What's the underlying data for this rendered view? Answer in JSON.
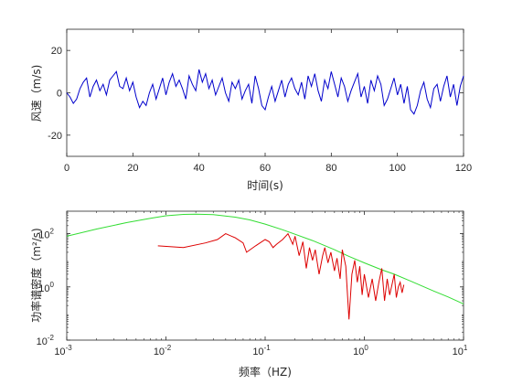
{
  "colors": {
    "wind_line": "#0000cc",
    "psd_line": "#dd0000",
    "model_line": "#33dd33",
    "axis": "#262626",
    "frame": "#262626"
  },
  "chart_data": [
    {
      "type": "line",
      "xlabel": "时间(s)",
      "ylabel": "风速（m/s)",
      "xlim": [
        0,
        120
      ],
      "ylim": [
        -30,
        30
      ],
      "xticks": [
        "0",
        "20",
        "40",
        "60",
        "80",
        "100",
        "120"
      ],
      "yticks": [
        "20",
        "0",
        "-20"
      ],
      "grid": false,
      "series": [
        {
          "x": [
            0,
            1,
            2,
            3,
            4,
            5,
            6,
            7,
            8,
            9,
            10,
            11,
            12,
            13,
            14,
            15,
            16,
            17,
            18,
            19,
            20,
            21,
            22,
            23,
            24,
            25,
            26,
            27,
            28,
            29,
            30,
            31,
            32,
            33,
            34,
            35,
            36,
            37,
            38,
            39,
            40,
            41,
            42,
            43,
            44,
            45,
            46,
            47,
            48,
            49,
            50,
            51,
            52,
            53,
            54,
            55,
            56,
            57,
            58,
            59,
            60,
            61,
            62,
            63,
            64,
            65,
            66,
            67,
            68,
            69,
            70,
            71,
            72,
            73,
            74,
            75,
            76,
            77,
            78,
            79,
            80,
            81,
            82,
            83,
            84,
            85,
            86,
            87,
            88,
            89,
            90,
            91,
            92,
            93,
            94,
            95,
            96,
            97,
            98,
            99,
            100,
            101,
            102,
            103,
            104,
            105,
            106,
            107,
            108,
            109,
            110,
            111,
            112,
            113,
            114,
            115,
            116,
            117,
            118,
            119,
            120
          ],
          "values": [
            0,
            -2,
            -5,
            -3,
            2,
            5,
            7,
            -2,
            3,
            6,
            1,
            4,
            -1,
            6,
            8,
            10,
            3,
            2,
            7,
            1,
            5,
            -2,
            -7,
            -4,
            -6,
            0,
            4,
            -3,
            2,
            7,
            -1,
            5,
            9,
            3,
            6,
            2,
            -3,
            8,
            4,
            1,
            11,
            5,
            9,
            2,
            6,
            -1,
            3,
            7,
            0,
            -4,
            5,
            2,
            6,
            -3,
            1,
            4,
            -5,
            8,
            2,
            -6,
            -8,
            -2,
            3,
            -4,
            1,
            6,
            -2,
            4,
            7,
            2,
            -1,
            5,
            -3,
            8,
            3,
            9,
            1,
            -4,
            6,
            2,
            10,
            4,
            -2,
            7,
            3,
            -4,
            1,
            5,
            9,
            -2,
            3,
            -5,
            6,
            1,
            8,
            4,
            -6,
            -3,
            2,
            7,
            -1,
            4,
            -5,
            3,
            -8,
            -10,
            -6,
            1,
            5,
            -3,
            -7,
            2,
            4,
            -4,
            3,
            8,
            -2,
            4,
            -6,
            3,
            8
          ]
        }
      ]
    },
    {
      "type": "line",
      "xlabel": "频率（HZ)",
      "ylabel": "功率谱密度（m²/s)",
      "xscale": "log",
      "yscale": "log",
      "xlim": [
        0.001,
        10
      ],
      "ylim": [
        0.01,
        700
      ],
      "xticks": [
        "10",
        "10",
        "10",
        "10",
        "10"
      ],
      "xtick_exponents": [
        "-3",
        "-2",
        "-1",
        "0",
        "1"
      ],
      "yticks": [
        "10",
        "10",
        "10"
      ],
      "ytick_exponents": [
        "2",
        "0",
        "-2"
      ],
      "grid": false,
      "series": [
        {
          "x": [
            0.001,
            0.002,
            0.004,
            0.007,
            0.01,
            0.015,
            0.02,
            0.03,
            0.05,
            0.07,
            0.1,
            0.15,
            0.2,
            0.3,
            0.5,
            0.7,
            1,
            1.5,
            2,
            3,
            5,
            7,
            10
          ],
          "values": [
            80,
            150,
            260,
            380,
            470,
            530,
            545,
            520,
            420,
            330,
            230,
            140,
            95,
            55,
            25,
            14,
            8,
            4.4,
            3,
            1.6,
            0.7,
            0.42,
            0.23
          ]
        },
        {
          "x": [
            0.0083,
            0.015,
            0.025,
            0.033,
            0.04,
            0.05,
            0.06,
            0.065,
            0.08,
            0.1,
            0.11,
            0.12,
            0.13,
            0.15,
            0.17,
            0.19,
            0.2,
            0.22,
            0.24,
            0.26,
            0.28,
            0.3,
            0.32,
            0.35,
            0.38,
            0.4,
            0.43,
            0.46,
            0.5,
            0.53,
            0.57,
            0.6,
            0.65,
            0.7,
            0.75,
            0.8,
            0.85,
            0.9,
            0.95,
            1.0,
            1.1,
            1.2,
            1.3,
            1.4,
            1.5,
            1.6,
            1.7,
            1.8,
            1.9,
            2.0,
            2.1,
            2.2,
            2.3,
            2.4,
            2.5
          ],
          "values": [
            35,
            30,
            45,
            60,
            100,
            70,
            45,
            20,
            35,
            60,
            50,
            30,
            40,
            60,
            100,
            40,
            80,
            15,
            50,
            5,
            30,
            10,
            25,
            3,
            15,
            30,
            8,
            20,
            4,
            12,
            2,
            25,
            6,
            0.06,
            3,
            10,
            1.5,
            6,
            0.5,
            3,
            0.4,
            2,
            0.3,
            1.5,
            5,
            0.3,
            2,
            0.5,
            1.2,
            3,
            0.4,
            1,
            1.5,
            0.6,
            1.2
          ]
        }
      ]
    }
  ]
}
